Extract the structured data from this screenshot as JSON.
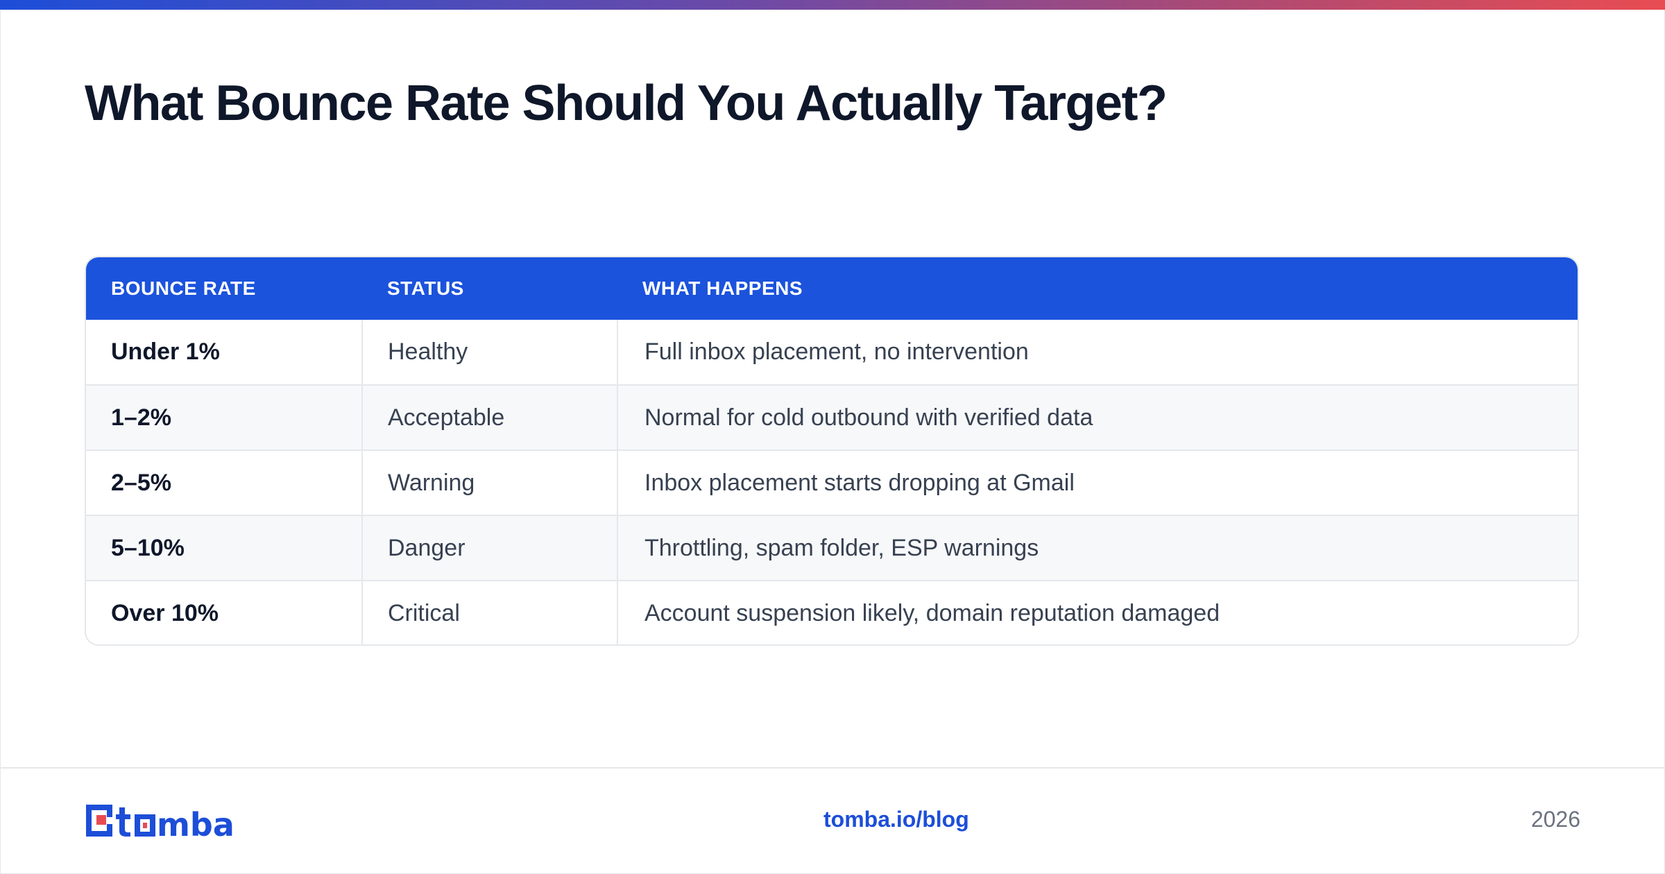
{
  "title": "What Bounce Rate Should You Actually Target?",
  "table": {
    "headers": [
      "BOUNCE RATE",
      "STATUS",
      "WHAT HAPPENS"
    ],
    "rows": [
      {
        "rate": "Under 1%",
        "status": "Healthy",
        "what": "Full inbox placement, no intervention"
      },
      {
        "rate": "1–2%",
        "status": "Acceptable",
        "what": "Normal for cold outbound with verified data"
      },
      {
        "rate": "2–5%",
        "status": "Warning",
        "what": "Inbox placement starts dropping at Gmail"
      },
      {
        "rate": "5–10%",
        "status": "Danger",
        "what": "Throttling, spam folder, ESP warnings"
      },
      {
        "rate": "Over 10%",
        "status": "Critical",
        "what": "Account suspension likely, domain reputation damaged"
      }
    ]
  },
  "footer": {
    "logo_text": "tomba",
    "link": "tomba.io/blog",
    "year": "2026"
  },
  "colors": {
    "header_blue": "#1b53dc",
    "link_blue": "#1d4ed8",
    "gradient_start": "#1d4ed8",
    "gradient_end": "#e84c52"
  }
}
